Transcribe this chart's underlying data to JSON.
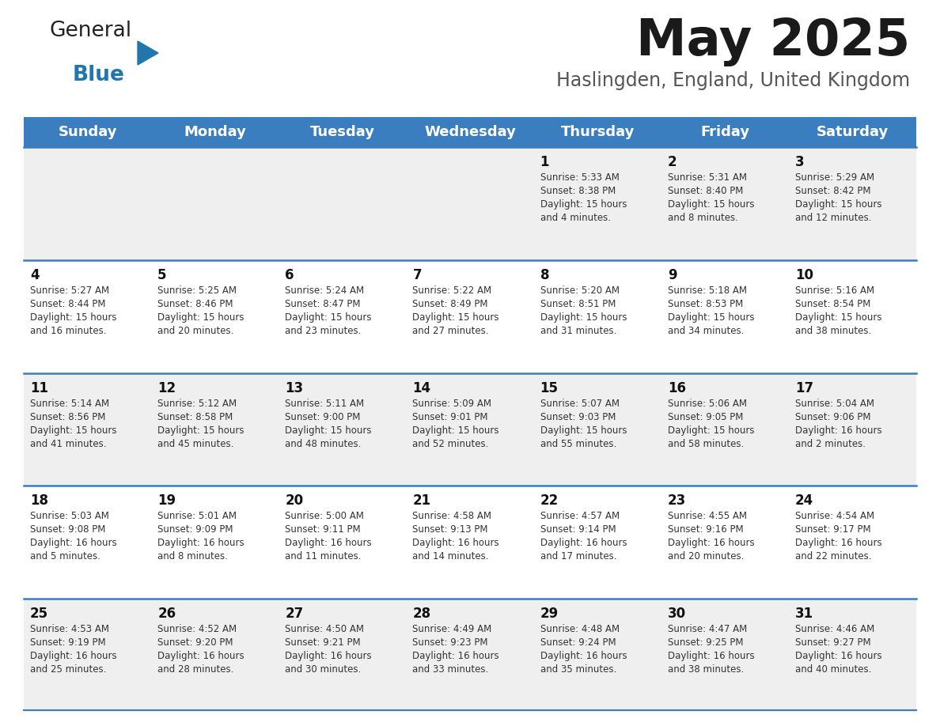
{
  "title": "May 2025",
  "subtitle": "Haslingden, England, United Kingdom",
  "days_of_week": [
    "Sunday",
    "Monday",
    "Tuesday",
    "Wednesday",
    "Thursday",
    "Friday",
    "Saturday"
  ],
  "header_bg": "#3A7EBF",
  "header_text": "#FFFFFF",
  "row_bg_odd": "#EFEFEF",
  "row_bg_even": "#FFFFFF",
  "text_color": "#333333",
  "day_number_color": "#111111",
  "separator_color": "#3A7EBF",
  "logo_text_color": "#222222",
  "logo_blue_color": "#2176AE",
  "title_color": "#1a1a1a",
  "subtitle_color": "#555555",
  "calendar_data": [
    [
      null,
      null,
      null,
      null,
      {
        "day": 1,
        "sunrise": "5:33 AM",
        "sunset": "8:38 PM",
        "daylight_line1": "15 hours",
        "daylight_line2": "and 4 minutes."
      },
      {
        "day": 2,
        "sunrise": "5:31 AM",
        "sunset": "8:40 PM",
        "daylight_line1": "15 hours",
        "daylight_line2": "and 8 minutes."
      },
      {
        "day": 3,
        "sunrise": "5:29 AM",
        "sunset": "8:42 PM",
        "daylight_line1": "15 hours",
        "daylight_line2": "and 12 minutes."
      }
    ],
    [
      {
        "day": 4,
        "sunrise": "5:27 AM",
        "sunset": "8:44 PM",
        "daylight_line1": "15 hours",
        "daylight_line2": "and 16 minutes."
      },
      {
        "day": 5,
        "sunrise": "5:25 AM",
        "sunset": "8:46 PM",
        "daylight_line1": "15 hours",
        "daylight_line2": "and 20 minutes."
      },
      {
        "day": 6,
        "sunrise": "5:24 AM",
        "sunset": "8:47 PM",
        "daylight_line1": "15 hours",
        "daylight_line2": "and 23 minutes."
      },
      {
        "day": 7,
        "sunrise": "5:22 AM",
        "sunset": "8:49 PM",
        "daylight_line1": "15 hours",
        "daylight_line2": "and 27 minutes."
      },
      {
        "day": 8,
        "sunrise": "5:20 AM",
        "sunset": "8:51 PM",
        "daylight_line1": "15 hours",
        "daylight_line2": "and 31 minutes."
      },
      {
        "day": 9,
        "sunrise": "5:18 AM",
        "sunset": "8:53 PM",
        "daylight_line1": "15 hours",
        "daylight_line2": "and 34 minutes."
      },
      {
        "day": 10,
        "sunrise": "5:16 AM",
        "sunset": "8:54 PM",
        "daylight_line1": "15 hours",
        "daylight_line2": "and 38 minutes."
      }
    ],
    [
      {
        "day": 11,
        "sunrise": "5:14 AM",
        "sunset": "8:56 PM",
        "daylight_line1": "15 hours",
        "daylight_line2": "and 41 minutes."
      },
      {
        "day": 12,
        "sunrise": "5:12 AM",
        "sunset": "8:58 PM",
        "daylight_line1": "15 hours",
        "daylight_line2": "and 45 minutes."
      },
      {
        "day": 13,
        "sunrise": "5:11 AM",
        "sunset": "9:00 PM",
        "daylight_line1": "15 hours",
        "daylight_line2": "and 48 minutes."
      },
      {
        "day": 14,
        "sunrise": "5:09 AM",
        "sunset": "9:01 PM",
        "daylight_line1": "15 hours",
        "daylight_line2": "and 52 minutes."
      },
      {
        "day": 15,
        "sunrise": "5:07 AM",
        "sunset": "9:03 PM",
        "daylight_line1": "15 hours",
        "daylight_line2": "and 55 minutes."
      },
      {
        "day": 16,
        "sunrise": "5:06 AM",
        "sunset": "9:05 PM",
        "daylight_line1": "15 hours",
        "daylight_line2": "and 58 minutes."
      },
      {
        "day": 17,
        "sunrise": "5:04 AM",
        "sunset": "9:06 PM",
        "daylight_line1": "16 hours",
        "daylight_line2": "and 2 minutes."
      }
    ],
    [
      {
        "day": 18,
        "sunrise": "5:03 AM",
        "sunset": "9:08 PM",
        "daylight_line1": "16 hours",
        "daylight_line2": "and 5 minutes."
      },
      {
        "day": 19,
        "sunrise": "5:01 AM",
        "sunset": "9:09 PM",
        "daylight_line1": "16 hours",
        "daylight_line2": "and 8 minutes."
      },
      {
        "day": 20,
        "sunrise": "5:00 AM",
        "sunset": "9:11 PM",
        "daylight_line1": "16 hours",
        "daylight_line2": "and 11 minutes."
      },
      {
        "day": 21,
        "sunrise": "4:58 AM",
        "sunset": "9:13 PM",
        "daylight_line1": "16 hours",
        "daylight_line2": "and 14 minutes."
      },
      {
        "day": 22,
        "sunrise": "4:57 AM",
        "sunset": "9:14 PM",
        "daylight_line1": "16 hours",
        "daylight_line2": "and 17 minutes."
      },
      {
        "day": 23,
        "sunrise": "4:55 AM",
        "sunset": "9:16 PM",
        "daylight_line1": "16 hours",
        "daylight_line2": "and 20 minutes."
      },
      {
        "day": 24,
        "sunrise": "4:54 AM",
        "sunset": "9:17 PM",
        "daylight_line1": "16 hours",
        "daylight_line2": "and 22 minutes."
      }
    ],
    [
      {
        "day": 25,
        "sunrise": "4:53 AM",
        "sunset": "9:19 PM",
        "daylight_line1": "16 hours",
        "daylight_line2": "and 25 minutes."
      },
      {
        "day": 26,
        "sunrise": "4:52 AM",
        "sunset": "9:20 PM",
        "daylight_line1": "16 hours",
        "daylight_line2": "and 28 minutes."
      },
      {
        "day": 27,
        "sunrise": "4:50 AM",
        "sunset": "9:21 PM",
        "daylight_line1": "16 hours",
        "daylight_line2": "and 30 minutes."
      },
      {
        "day": 28,
        "sunrise": "4:49 AM",
        "sunset": "9:23 PM",
        "daylight_line1": "16 hours",
        "daylight_line2": "and 33 minutes."
      },
      {
        "day": 29,
        "sunrise": "4:48 AM",
        "sunset": "9:24 PM",
        "daylight_line1": "16 hours",
        "daylight_line2": "and 35 minutes."
      },
      {
        "day": 30,
        "sunrise": "4:47 AM",
        "sunset": "9:25 PM",
        "daylight_line1": "16 hours",
        "daylight_line2": "and 38 minutes."
      },
      {
        "day": 31,
        "sunrise": "4:46 AM",
        "sunset": "9:27 PM",
        "daylight_line1": "16 hours",
        "daylight_line2": "and 40 minutes."
      }
    ]
  ]
}
